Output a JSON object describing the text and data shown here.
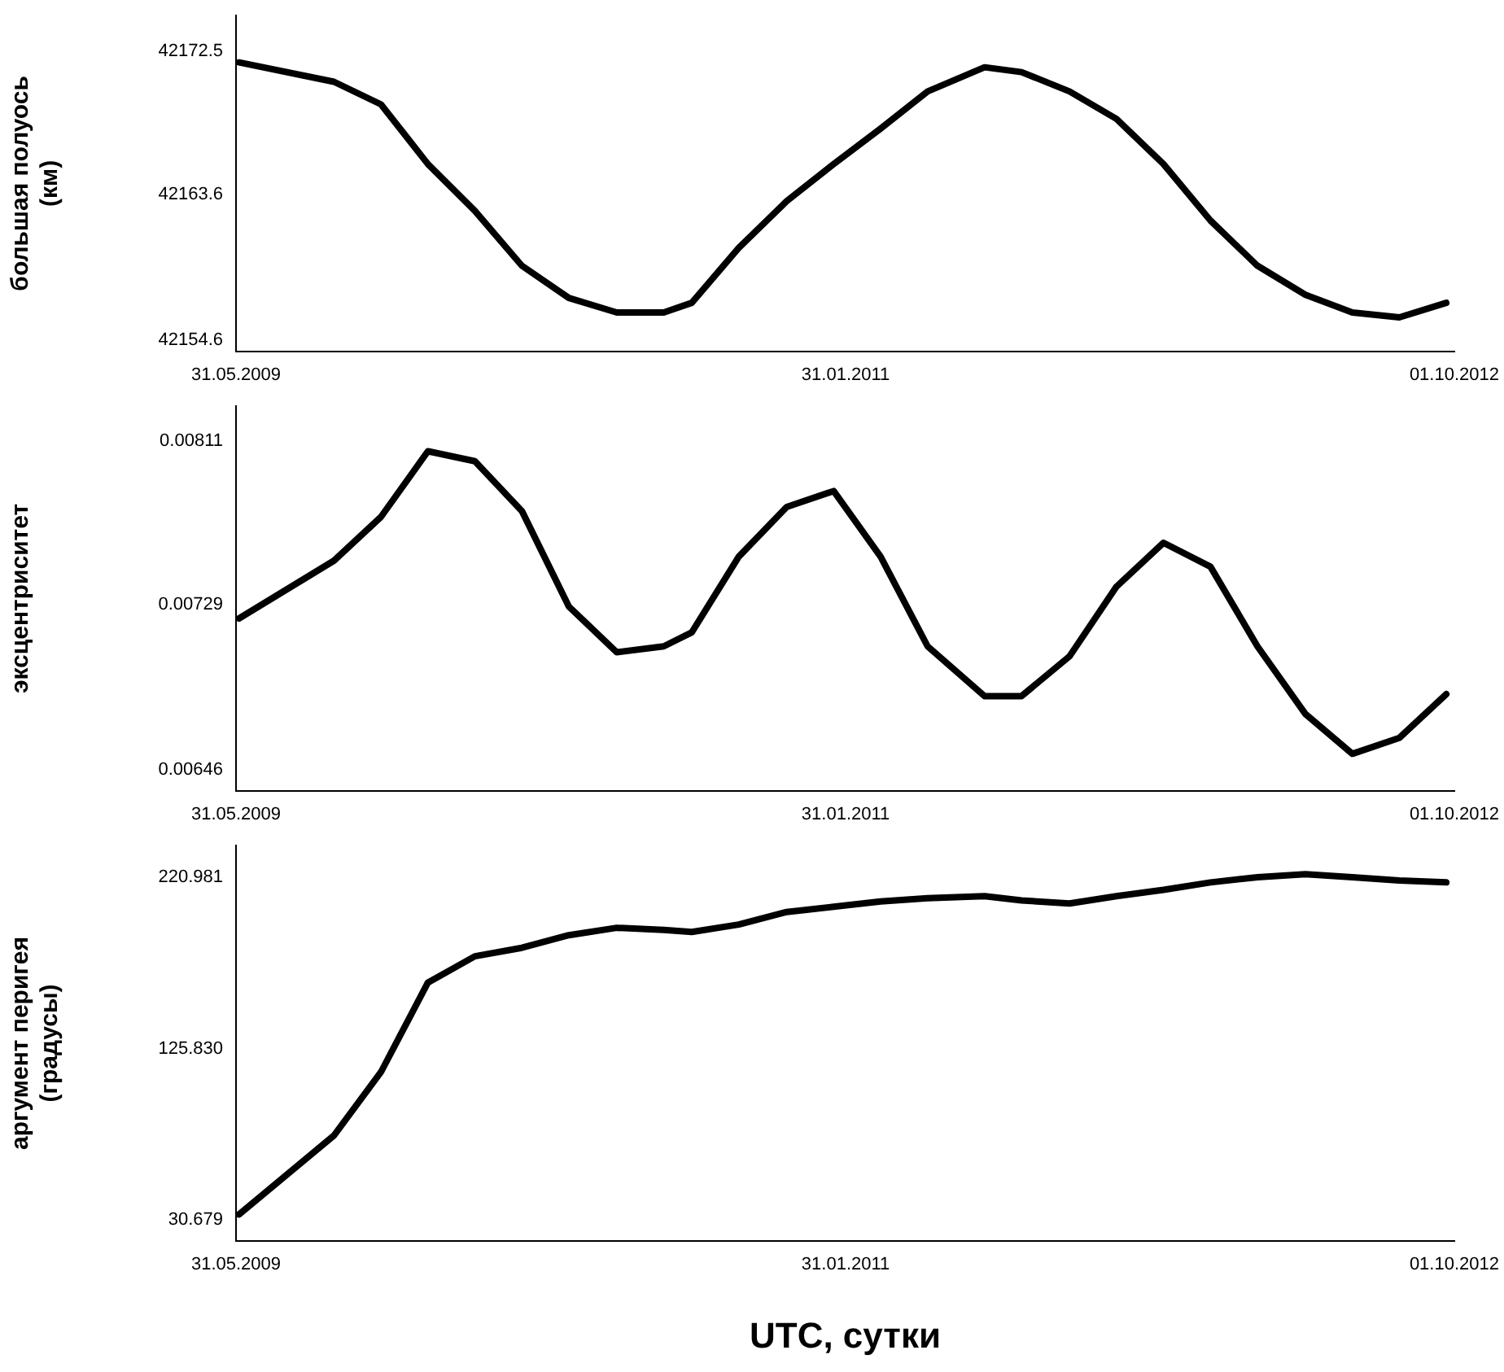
{
  "chart_data": [
    {
      "type": "line",
      "ylabel": "большая полуось\n(км)",
      "color": "#000000",
      "marker": "none",
      "x": [
        "2009-06-03",
        "2009-09-06",
        "2009-10-23",
        "2009-12-09",
        "2010-01-25",
        "2010-03-13",
        "2010-04-29",
        "2010-06-16",
        "2010-08-02",
        "2010-08-30",
        "2010-10-16",
        "2010-12-03",
        "2011-01-19",
        "2011-03-07",
        "2011-04-23",
        "2011-06-19",
        "2011-07-26",
        "2011-09-12",
        "2011-10-29",
        "2011-12-15",
        "2012-01-31",
        "2012-03-18",
        "2012-05-05",
        "2012-06-21",
        "2012-08-07",
        "2012-09-23"
      ],
      "values": [
        42171.8,
        42170.6,
        42169.2,
        42165.5,
        42162.6,
        42159.2,
        42157.2,
        42156.3,
        42156.3,
        42156.9,
        42160.3,
        42163.2,
        42165.5,
        42167.7,
        42170.0,
        42171.5,
        42171.2,
        42170.0,
        42168.3,
        42165.5,
        42162.0,
        42159.2,
        42157.4,
        42156.3,
        42156.0,
        42156.9
      ],
      "xlim": [
        "2009-05-31",
        "2012-10-01"
      ],
      "xticks": [
        {
          "value": "2009-05-31",
          "label": "31.05.2009"
        },
        {
          "value": "2011-01-31",
          "label": "31.01.2011"
        },
        {
          "value": "2012-10-01",
          "label": "01.10.2012"
        }
      ],
      "ylim": [
        42153.9,
        42174.7
      ],
      "yticks": [
        42154.6,
        42163.6,
        42172.5
      ]
    },
    {
      "type": "line",
      "ylabel": "эксцентриситет",
      "color": "#000000",
      "marker": "none",
      "x": [
        "2009-06-03",
        "2009-09-06",
        "2009-10-23",
        "2009-12-09",
        "2010-01-25",
        "2010-03-13",
        "2010-04-29",
        "2010-06-16",
        "2010-08-02",
        "2010-08-30",
        "2010-10-16",
        "2010-12-03",
        "2011-01-19",
        "2011-03-07",
        "2011-04-23",
        "2011-06-19",
        "2011-07-26",
        "2011-09-12",
        "2011-10-29",
        "2011-12-15",
        "2012-01-31",
        "2012-03-18",
        "2012-05-05",
        "2012-06-21",
        "2012-08-07",
        "2012-09-23"
      ],
      "values": [
        0.00722,
        0.00751,
        0.00773,
        0.00806,
        0.00801,
        0.00776,
        0.00728,
        0.00705,
        0.00708,
        0.00715,
        0.00753,
        0.00778,
        0.00786,
        0.00753,
        0.00708,
        0.00683,
        0.00683,
        0.00703,
        0.00738,
        0.0076,
        0.00748,
        0.00708,
        0.00674,
        0.00654,
        0.00662,
        0.00684
      ],
      "xlim": [
        "2009-05-31",
        "2012-10-01"
      ],
      "xticks": [
        {
          "value": "2009-05-31",
          "label": "31.05.2009"
        },
        {
          "value": "2011-01-31",
          "label": "31.01.2011"
        },
        {
          "value": "2012-10-01",
          "label": "01.10.2012"
        }
      ],
      "ylim": [
        0.006355,
        0.008286
      ],
      "yticks": [
        0.00646,
        0.00729,
        0.00811
      ]
    },
    {
      "type": "line",
      "ylabel": "аргумент перигея\n(градусы)",
      "xlabel": "UTC, сутки",
      "color": "#000000",
      "marker": "none",
      "x": [
        "2009-06-03",
        "2009-09-06",
        "2009-10-23",
        "2009-12-09",
        "2010-01-25",
        "2010-03-13",
        "2010-04-29",
        "2010-06-16",
        "2010-08-02",
        "2010-08-30",
        "2010-10-16",
        "2010-12-03",
        "2011-01-19",
        "2011-03-07",
        "2011-04-23",
        "2011-06-19",
        "2011-07-26",
        "2011-09-12",
        "2011-10-29",
        "2011-12-15",
        "2012-01-31",
        "2012-03-18",
        "2012-05-05",
        "2012-06-21",
        "2012-08-07",
        "2012-09-23"
      ],
      "values": [
        33.8,
        77.6,
        112.8,
        162.5,
        177.1,
        181.8,
        188.8,
        192.9,
        191.7,
        190.6,
        194.7,
        201.7,
        204.6,
        207.5,
        209.3,
        210.5,
        208.1,
        206.4,
        210.5,
        214.0,
        218.1,
        221.0,
        222.7,
        221.0,
        219.2,
        218.1
      ],
      "xlim": [
        "2009-05-31",
        "2012-10-01"
      ],
      "xticks": [
        {
          "value": "2009-05-31",
          "label": "31.05.2009"
        },
        {
          "value": "2011-01-31",
          "label": "31.01.2011"
        },
        {
          "value": "2012-10-01",
          "label": "01.10.2012"
        }
      ],
      "ylim": [
        19.16,
        238.5
      ],
      "yticks": [
        30.679,
        {
          "value": 125.83,
          "label": "125.830"
        },
        220.981
      ]
    }
  ]
}
